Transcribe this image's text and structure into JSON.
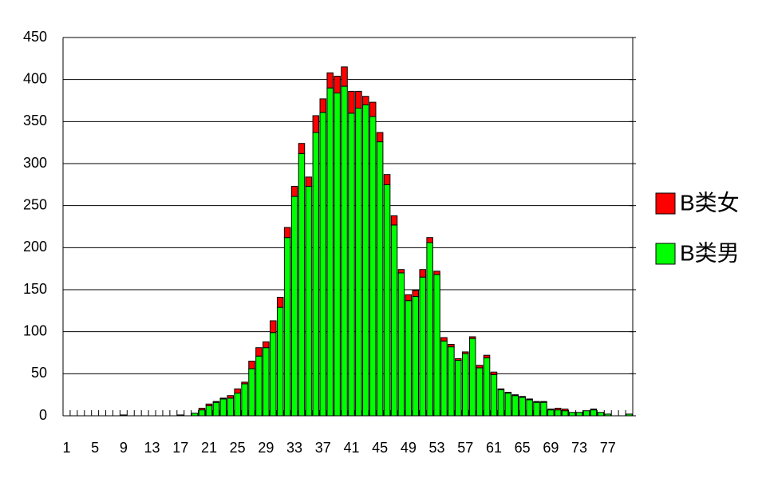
{
  "chart_data": {
    "type": "stacked_bar",
    "categories": [
      "1",
      null,
      null,
      null,
      "5",
      null,
      null,
      null,
      "9",
      null,
      null,
      null,
      "13",
      null,
      null,
      null,
      "17",
      null,
      null,
      null,
      "21",
      null,
      null,
      null,
      "25",
      null,
      null,
      null,
      "29",
      null,
      null,
      null,
      "33",
      null,
      null,
      null,
      "37",
      null,
      null,
      null,
      "41",
      null,
      null,
      null,
      "45",
      null,
      null,
      null,
      "49",
      null,
      null,
      null,
      "53",
      null,
      null,
      null,
      "57",
      null,
      null,
      null,
      "61",
      null,
      null,
      null,
      "65",
      null,
      null,
      null,
      "69",
      null,
      null,
      null,
      "73",
      null,
      null,
      null,
      "77",
      null,
      null,
      null
    ],
    "series": [
      {
        "name": "B类男",
        "color": "#00ff00",
        "values": [
          0,
          0,
          0,
          0,
          0,
          0,
          0,
          0,
          1,
          0,
          0,
          0,
          0,
          0,
          0,
          0,
          1,
          0,
          3,
          7,
          12,
          16,
          20,
          21,
          27,
          38,
          56,
          71,
          81,
          99,
          129,
          212,
          261,
          312,
          273,
          337,
          361,
          390,
          384,
          392,
          360,
          366,
          370,
          356,
          326,
          275,
          227,
          170,
          137,
          142,
          165,
          206,
          168,
          89,
          82,
          66,
          74,
          92,
          57,
          69,
          49,
          31,
          27,
          24,
          22,
          19,
          16,
          16,
          7,
          7,
          6,
          4,
          4,
          6,
          7,
          4,
          2,
          0,
          0,
          2
        ]
      },
      {
        "name": "B类女",
        "color": "#ff0000",
        "values": [
          0,
          0,
          0,
          0,
          0,
          0,
          0,
          0,
          0,
          0,
          0,
          0,
          0,
          0,
          0,
          0,
          0,
          0,
          0,
          2,
          2,
          1,
          1,
          3,
          5,
          2,
          9,
          10,
          7,
          14,
          12,
          12,
          12,
          12,
          11,
          20,
          16,
          18,
          20,
          23,
          26,
          20,
          10,
          17,
          11,
          12,
          11,
          4,
          7,
          7,
          9,
          6,
          4,
          4,
          3,
          2,
          2,
          2,
          3,
          3,
          3,
          1,
          1,
          1,
          1,
          1,
          1,
          1,
          1,
          2,
          2,
          0,
          0,
          0,
          1,
          0,
          0,
          0,
          0,
          0
        ]
      }
    ],
    "ylim": [
      0,
      450
    ],
    "yticks": [
      0,
      50,
      100,
      150,
      200,
      250,
      300,
      350,
      400,
      450
    ],
    "grid": true,
    "legend": "right"
  }
}
